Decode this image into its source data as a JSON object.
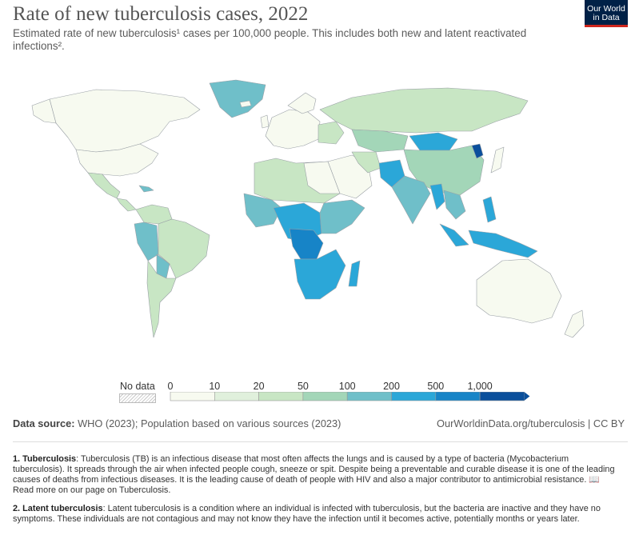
{
  "header": {
    "title": "Rate of new tuberculosis cases, 2022",
    "subtitle": "Estimated rate of new tuberculosis¹ cases per 100,000 people. This includes both new and latent reactivated infections².",
    "logo_line1": "Our World",
    "logo_line2": "in Data"
  },
  "legend": {
    "no_data_label": "No data",
    "bins": [
      {
        "label": "0",
        "color": "#f7faf0"
      },
      {
        "label": "10",
        "color": "#e0f0dc"
      },
      {
        "label": "20",
        "color": "#c8e6c4"
      },
      {
        "label": "50",
        "color": "#a3d6b8"
      },
      {
        "label": "100",
        "color": "#6fbfc9"
      },
      {
        "label": "200",
        "color": "#2ba7d8"
      },
      {
        "label": "500",
        "color": "#1784c7"
      },
      {
        "label": "1,000",
        "color": "#0a4f9c"
      }
    ]
  },
  "footer": {
    "source_label": "Data source:",
    "source_text": " WHO (2023); Population based on various sources (2023)",
    "credit": "OurWorldinData.org/tuberculosis | CC BY"
  },
  "notes": [
    {
      "label": "1. Tuberculosis",
      "text": ": Tuberculosis (TB) is an infectious disease that most often affects the lungs and is caused by a type of bacteria (Mycobacterium tuberculosis). It spreads through the air when infected people cough, sneeze or spit. Despite being a preventable and curable disease it is one of the leading causes of deaths from infectious diseases. It is the leading cause of death of people with HIV and also a major contributor to antimicrobial resistance. 📖 Read more on our page on Tuberculosis."
    },
    {
      "label": "2. Latent tuberculosis",
      "text": ": Latent tuberculosis is a condition where an individual is infected with tuberculosis, but the bacteria are inactive and they have no symptoms. These individuals are not contagious and may not know they have the infection until it becomes active, potentially months or years later."
    }
  ],
  "map_colors": {
    "lowest": "#f7faf0",
    "very_low": "#e0f0dc",
    "low": "#c8e6c4",
    "moderate": "#a3d6b8",
    "elevated": "#6fbfc9",
    "high": "#2ba7d8",
    "very_high": "#1784c7",
    "extreme": "#0a4f9c",
    "border": "#9aa0a6"
  }
}
